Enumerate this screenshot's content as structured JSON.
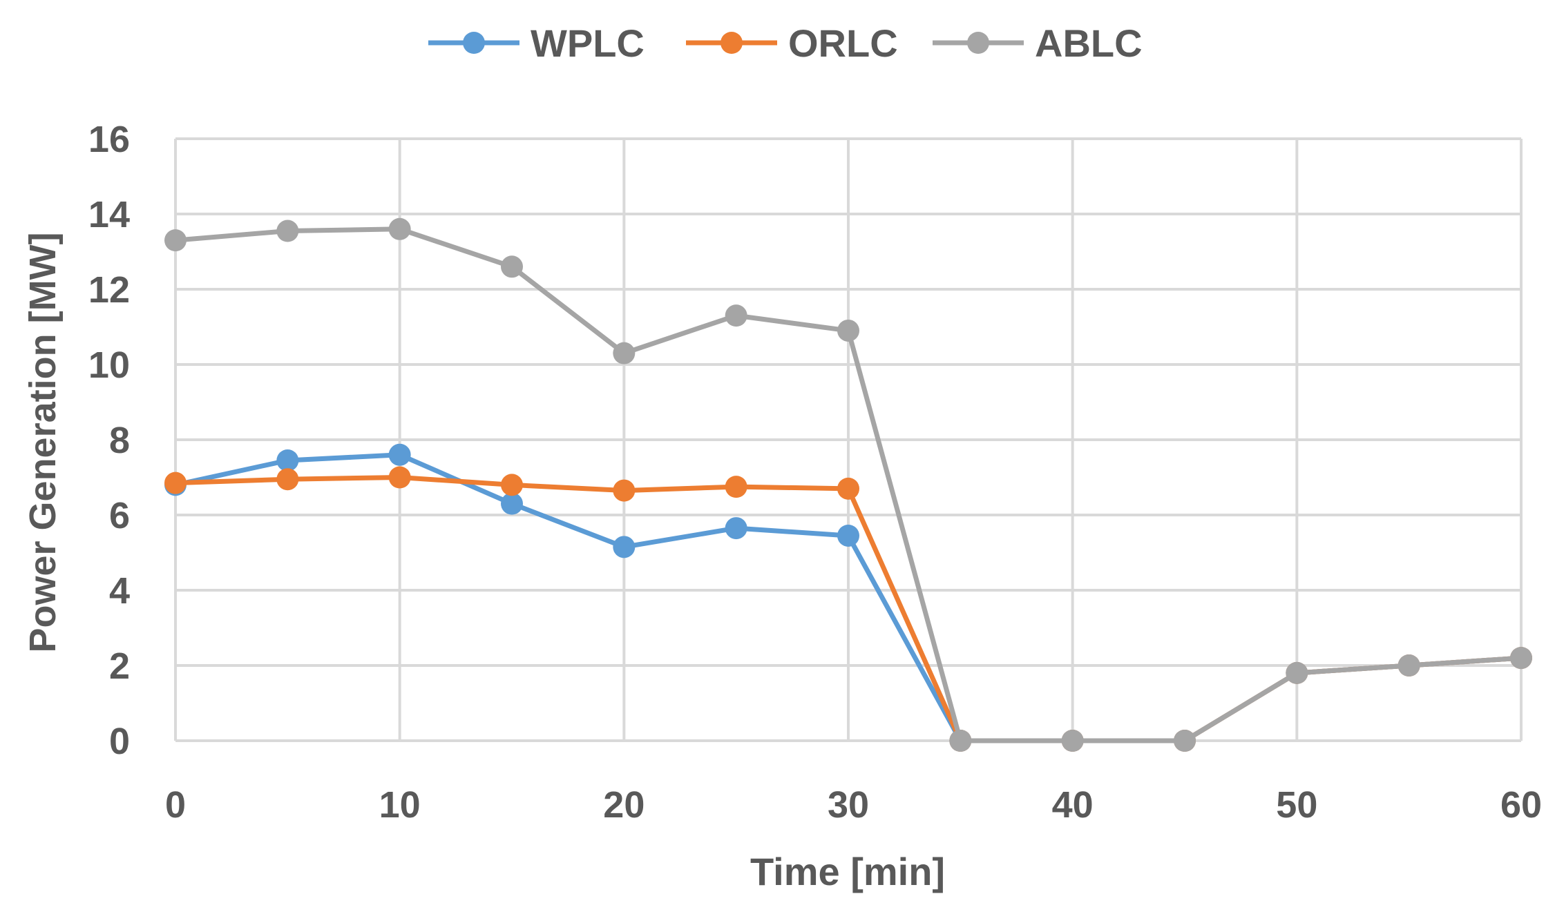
{
  "chart_data": {
    "type": "line",
    "title": "",
    "xlabel": "Time [min]",
    "ylabel": "Power Generation [MW]",
    "xlim": [
      0,
      60
    ],
    "ylim": [
      0,
      16
    ],
    "xticks": [
      0,
      10,
      20,
      30,
      40,
      50,
      60
    ],
    "yticks": [
      0,
      2,
      4,
      6,
      8,
      10,
      12,
      14,
      16
    ],
    "x_tick_labels": [
      "0",
      "10",
      "20",
      "30",
      "40",
      "50",
      "60"
    ],
    "y_tick_labels": [
      "0",
      "2",
      "4",
      "6",
      "8",
      "10",
      "12",
      "14",
      "16"
    ],
    "grid": true,
    "legend_position": "top-center",
    "x": [
      0,
      5,
      10,
      15,
      20,
      25,
      30,
      35,
      40,
      45,
      50,
      55,
      60
    ],
    "series": [
      {
        "name": "WPLC",
        "color": "#5B9BD5",
        "values": [
          6.8,
          7.45,
          7.6,
          6.3,
          5.15,
          5.65,
          5.45,
          0,
          0,
          0,
          1.8,
          2.0,
          2.2
        ]
      },
      {
        "name": "ORLC",
        "color": "#ED7D31",
        "values": [
          6.85,
          6.95,
          7.0,
          6.8,
          6.65,
          6.75,
          6.7,
          0,
          0,
          0,
          1.8,
          2.0,
          2.2
        ]
      },
      {
        "name": "ABLC",
        "color": "#A5A5A5",
        "values": [
          13.3,
          13.55,
          13.6,
          12.6,
          10.3,
          11.3,
          10.9,
          0,
          0,
          0,
          1.8,
          2.0,
          2.2
        ]
      }
    ]
  }
}
